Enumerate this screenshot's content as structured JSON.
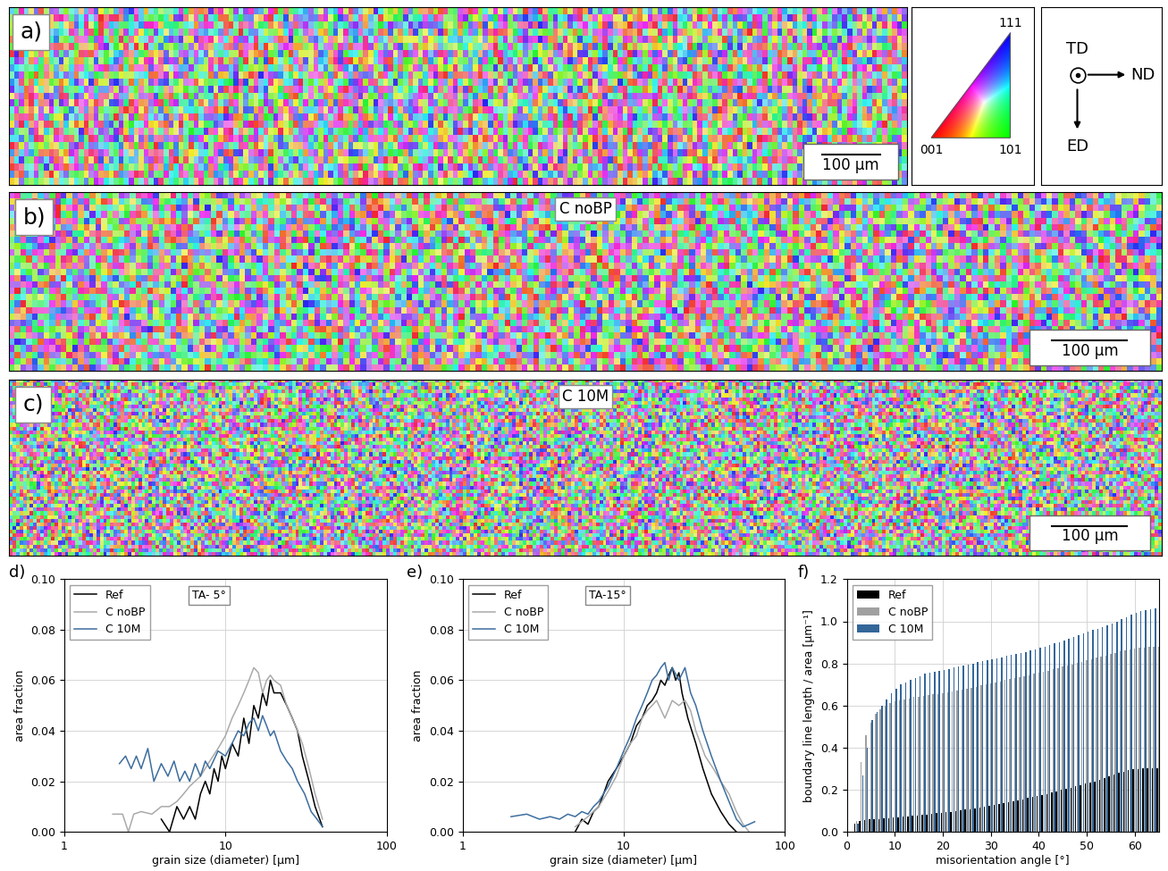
{
  "maps": [
    {
      "label": "a)",
      "scale_bar": "100 µm"
    },
    {
      "label": "b)",
      "name": "C noBP",
      "scale_bar": "100 µm"
    },
    {
      "label": "c)",
      "name": "C 10M",
      "scale_bar": "100 µm"
    }
  ],
  "ipf_key": {
    "corner_001": "001",
    "corner_101": "101",
    "corner_111": "111"
  },
  "axes_key": {
    "out_of_plane": "TD",
    "right": "ND",
    "down": "ED"
  },
  "chart_data": [
    {
      "type": "line",
      "panel": "d)",
      "annotation": "TA- 5°",
      "xlabel": "grain size (diameter) [µm]",
      "ylabel": "area fraction",
      "log": "x",
      "xlim": [
        1,
        100
      ],
      "xticks": [
        1,
        10,
        100
      ],
      "ylim": [
        0,
        0.1
      ],
      "yticks": [
        {
          "value": 0,
          "label": "0.00"
        },
        {
          "value": 0.02,
          "label": "0.02"
        },
        {
          "value": 0.04,
          "label": "0.04"
        },
        {
          "value": 0.06,
          "label": "0.06"
        },
        {
          "value": 0.08,
          "label": "0.08"
        },
        {
          "value": 0.1,
          "label": "0.10"
        }
      ],
      "grid": true,
      "legend": "upper left",
      "series": [
        {
          "name": "Ref",
          "color": "#000000",
          "x": [
            4,
            4.5,
            5,
            5.5,
            6,
            6.5,
            7,
            7.5,
            8,
            8.5,
            9,
            9.5,
            10,
            11,
            12,
            13,
            14,
            15,
            16,
            17,
            18,
            19,
            20,
            22,
            24,
            26,
            28,
            30,
            33,
            36,
            40
          ],
          "values": [
            0.005,
            0,
            0.01,
            0.005,
            0.01,
            0.005,
            0.015,
            0.02,
            0.015,
            0.025,
            0.02,
            0.03,
            0.025,
            0.035,
            0.03,
            0.045,
            0.035,
            0.05,
            0.045,
            0.055,
            0.05,
            0.06,
            0.055,
            0.055,
            0.05,
            0.045,
            0.04,
            0.03,
            0.02,
            0.01,
            0.002
          ]
        },
        {
          "name": "C noBP",
          "color": "#aaaaaa",
          "x": [
            2,
            2.3,
            2.5,
            2.7,
            3,
            3.5,
            4,
            4.5,
            5,
            5.5,
            6,
            7,
            8,
            9,
            10,
            11,
            12,
            13,
            14,
            15,
            16,
            17,
            18,
            19,
            20,
            22,
            24,
            26,
            28,
            30,
            33,
            36,
            40
          ],
          "values": [
            0.007,
            0.007,
            0,
            0.007,
            0.008,
            0.007,
            0.01,
            0.01,
            0.012,
            0.015,
            0.018,
            0.022,
            0.028,
            0.033,
            0.038,
            0.045,
            0.05,
            0.055,
            0.06,
            0.065,
            0.063,
            0.055,
            0.06,
            0.062,
            0.06,
            0.058,
            0.05,
            0.045,
            0.04,
            0.035,
            0.025,
            0.015,
            0.005
          ]
        },
        {
          "name": "C 10M",
          "color": "#3d6e9e",
          "x": [
            2.2,
            2.4,
            2.6,
            2.8,
            3,
            3.3,
            3.6,
            4,
            4.4,
            4.8,
            5.2,
            5.6,
            6,
            6.5,
            7,
            7.5,
            8,
            9,
            10,
            11,
            12,
            13,
            14,
            15,
            16,
            17,
            18,
            19,
            20,
            22,
            24,
            26,
            28,
            31,
            34,
            37,
            40
          ],
          "values": [
            0.027,
            0.03,
            0.025,
            0.03,
            0.025,
            0.033,
            0.02,
            0.027,
            0.022,
            0.028,
            0.02,
            0.024,
            0.02,
            0.027,
            0.022,
            0.028,
            0.025,
            0.032,
            0.03,
            0.035,
            0.04,
            0.038,
            0.043,
            0.045,
            0.04,
            0.046,
            0.042,
            0.038,
            0.04,
            0.032,
            0.028,
            0.025,
            0.02,
            0.015,
            0.008,
            0.005,
            0.002
          ]
        }
      ]
    },
    {
      "type": "line",
      "panel": "e)",
      "annotation": "TA-15°",
      "xlabel": "grain size (diameter) [µm]",
      "ylabel": "area fraction",
      "log": "x",
      "xlim": [
        1,
        100
      ],
      "xticks": [
        1,
        10,
        100
      ],
      "ylim": [
        0,
        0.1
      ],
      "yticks": [
        {
          "value": 0,
          "label": "0.00"
        },
        {
          "value": 0.02,
          "label": "0.02"
        },
        {
          "value": 0.04,
          "label": "0.04"
        },
        {
          "value": 0.06,
          "label": "0.06"
        },
        {
          "value": 0.08,
          "label": "0.08"
        },
        {
          "value": 0.1,
          "label": "0.10"
        }
      ],
      "grid": true,
      "legend": "upper left",
      "series": [
        {
          "name": "Ref",
          "color": "#000000",
          "x": [
            5,
            5.5,
            6,
            6.5,
            7,
            7.5,
            8,
            9,
            10,
            11,
            12,
            13,
            14,
            15,
            16,
            17,
            18,
            19,
            20,
            21,
            22,
            23,
            25,
            28,
            31,
            35,
            40,
            45,
            50
          ],
          "values": [
            0,
            0.005,
            0.003,
            0.008,
            0.01,
            0.015,
            0.02,
            0.025,
            0.03,
            0.035,
            0.042,
            0.045,
            0.05,
            0.052,
            0.055,
            0.06,
            0.058,
            0.062,
            0.065,
            0.06,
            0.063,
            0.055,
            0.045,
            0.035,
            0.025,
            0.015,
            0.008,
            0.003,
            0
          ]
        },
        {
          "name": "C noBP",
          "color": "#aaaaaa",
          "x": [
            5,
            6,
            7,
            8,
            9,
            10,
            11,
            12,
            13,
            14,
            15,
            16,
            18,
            20,
            22,
            24,
            26,
            28,
            32,
            36,
            40,
            45,
            50,
            55,
            60
          ],
          "values": [
            0.002,
            0.006,
            0.01,
            0.016,
            0.022,
            0.03,
            0.035,
            0.038,
            0.045,
            0.048,
            0.05,
            0.052,
            0.045,
            0.052,
            0.05,
            0.052,
            0.048,
            0.04,
            0.03,
            0.025,
            0.02,
            0.015,
            0.008,
            0.003,
            0
          ]
        },
        {
          "name": "C 10M",
          "color": "#3d6e9e",
          "x": [
            2,
            2.5,
            3,
            3.5,
            4,
            4.5,
            5,
            5.5,
            6,
            6.5,
            7,
            8,
            9,
            10,
            11,
            12,
            13,
            14,
            15,
            16,
            17,
            18,
            19,
            20,
            22,
            24,
            26,
            28,
            31,
            35,
            40,
            45,
            50,
            55,
            60,
            65
          ],
          "values": [
            0.006,
            0.007,
            0.005,
            0.006,
            0.005,
            0.007,
            0.006,
            0.008,
            0.007,
            0.01,
            0.012,
            0.018,
            0.025,
            0.032,
            0.038,
            0.045,
            0.05,
            0.055,
            0.06,
            0.062,
            0.065,
            0.067,
            0.06,
            0.065,
            0.06,
            0.065,
            0.055,
            0.05,
            0.04,
            0.03,
            0.02,
            0.012,
            0.005,
            0.002,
            0.003,
            0.004
          ]
        }
      ]
    },
    {
      "type": "bar",
      "panel": "f)",
      "xlabel": "misorientation angle [°]",
      "ylabel": "boundary line length / area [µm⁻¹]",
      "xlim": [
        0,
        65
      ],
      "xticks": [
        0,
        10,
        20,
        30,
        40,
        50,
        60
      ],
      "ylim": [
        0,
        1.2
      ],
      "yticks": [
        {
          "value": 0,
          "label": "0.0"
        },
        {
          "value": 0.2,
          "label": "0.2"
        },
        {
          "value": 0.4,
          "label": "0.4"
        },
        {
          "value": 0.6,
          "label": "0.6"
        },
        {
          "value": 0.8,
          "label": "0.8"
        },
        {
          "value": 1.0,
          "label": "1.0"
        },
        {
          "value": 1.2,
          "label": "1.2"
        }
      ],
      "grid": true,
      "legend": "upper left",
      "x": [
        2,
        3,
        4,
        5,
        6,
        7,
        8,
        9,
        10,
        11,
        12,
        13,
        14,
        15,
        16,
        17,
        18,
        19,
        20,
        21,
        22,
        23,
        24,
        25,
        26,
        27,
        28,
        29,
        30,
        31,
        32,
        33,
        34,
        35,
        36,
        37,
        38,
        39,
        40,
        41,
        42,
        43,
        44,
        45,
        46,
        47,
        48,
        49,
        50,
        51,
        52,
        53,
        54,
        55,
        56,
        57,
        58,
        59,
        60,
        61,
        62,
        63,
        64,
        65
      ],
      "series": [
        {
          "name": "Ref",
          "color": "#000000",
          "values": [
            0.04,
            0.05,
            0.055,
            0.058,
            0.06,
            0.062,
            0.064,
            0.066,
            0.068,
            0.07,
            0.072,
            0.074,
            0.076,
            0.078,
            0.08,
            0.082,
            0.085,
            0.088,
            0.09,
            0.093,
            0.096,
            0.099,
            0.102,
            0.105,
            0.108,
            0.112,
            0.116,
            0.12,
            0.124,
            0.128,
            0.132,
            0.136,
            0.14,
            0.145,
            0.15,
            0.155,
            0.16,
            0.165,
            0.17,
            0.175,
            0.18,
            0.186,
            0.192,
            0.198,
            0.204,
            0.21,
            0.216,
            0.222,
            0.228,
            0.234,
            0.24,
            0.248,
            0.256,
            0.264,
            0.272,
            0.28,
            0.286,
            0.292,
            0.296,
            0.298,
            0.3,
            0.3,
            0.3,
            0.3
          ]
        },
        {
          "name": "C noBP",
          "color": "#a0a0a0",
          "values": [
            0.05,
            0.33,
            0.46,
            0.52,
            0.56,
            0.58,
            0.6,
            0.61,
            0.62,
            0.625,
            0.63,
            0.635,
            0.64,
            0.643,
            0.646,
            0.65,
            0.653,
            0.656,
            0.66,
            0.664,
            0.668,
            0.672,
            0.676,
            0.68,
            0.685,
            0.69,
            0.695,
            0.7,
            0.705,
            0.71,
            0.715,
            0.72,
            0.725,
            0.73,
            0.735,
            0.74,
            0.745,
            0.75,
            0.755,
            0.76,
            0.766,
            0.772,
            0.778,
            0.784,
            0.79,
            0.796,
            0.802,
            0.808,
            0.814,
            0.82,
            0.826,
            0.832,
            0.838,
            0.844,
            0.85,
            0.856,
            0.862,
            0.866,
            0.87,
            0.873,
            0.875,
            0.877,
            0.878,
            0.879
          ]
        },
        {
          "name": "C 10M",
          "color": "#336699",
          "values": [
            0.04,
            0.27,
            0.4,
            0.53,
            0.57,
            0.6,
            0.63,
            0.66,
            0.68,
            0.7,
            0.71,
            0.72,
            0.73,
            0.74,
            0.75,
            0.755,
            0.76,
            0.765,
            0.77,
            0.775,
            0.78,
            0.785,
            0.79,
            0.795,
            0.8,
            0.805,
            0.81,
            0.815,
            0.82,
            0.825,
            0.83,
            0.835,
            0.84,
            0.845,
            0.85,
            0.855,
            0.86,
            0.867,
            0.874,
            0.881,
            0.888,
            0.895,
            0.902,
            0.91,
            0.918,
            0.926,
            0.934,
            0.942,
            0.95,
            0.958,
            0.966,
            0.974,
            0.982,
            0.99,
            1.0,
            1.01,
            1.02,
            1.03,
            1.04,
            1.05,
            1.055,
            1.058,
            1.06,
            1.06
          ]
        }
      ]
    }
  ]
}
